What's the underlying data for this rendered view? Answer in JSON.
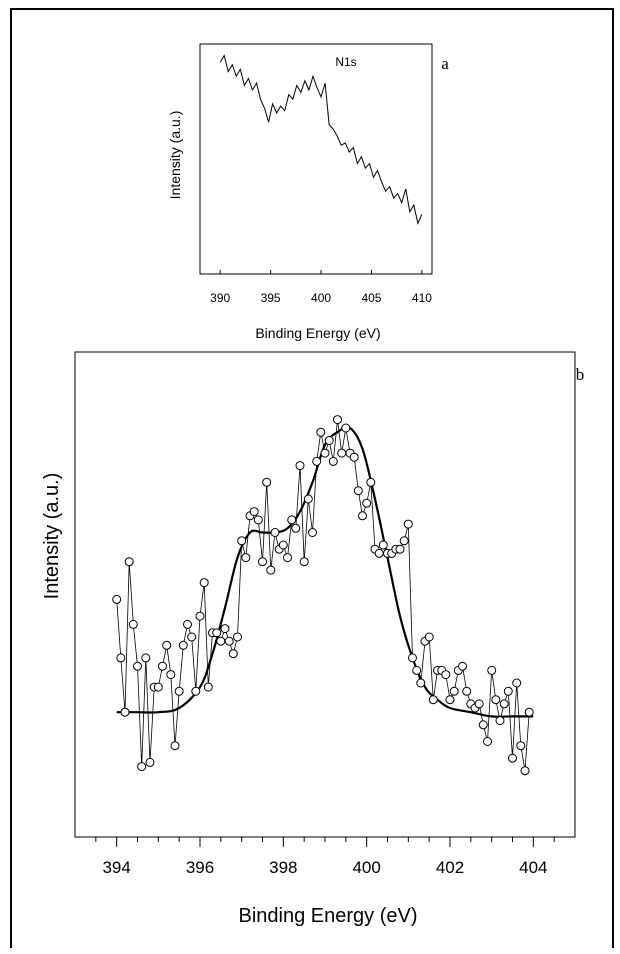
{
  "chart_data": [
    {
      "panel": "a",
      "type": "line",
      "annotation": "N1s",
      "xlabel": "Binding Energy (eV)",
      "ylabel": "Intensity (a.u.)",
      "xlim": [
        388,
        411
      ],
      "ylim": [
        0,
        100
      ],
      "x_ticks": [
        390,
        395,
        400,
        405,
        410
      ],
      "y_ticks": [],
      "grid": false,
      "series": [
        {
          "x": [
            390,
            390.4,
            390.8,
            391.2,
            391.6,
            392,
            392.4,
            392.8,
            393.2,
            393.6,
            394,
            394.4,
            394.8,
            395.2,
            395.6,
            396,
            396.4,
            396.8,
            397.2,
            397.6,
            398,
            398.4,
            398.8,
            399.2,
            399.6,
            400,
            400.4,
            400.8,
            401.2,
            401.6,
            402,
            402.4,
            402.8,
            403.2,
            403.6,
            404,
            404.4,
            404.8,
            405.2,
            405.6,
            406,
            406.4,
            406.8,
            407.2,
            407.6,
            408,
            408.4,
            408.8,
            409.2,
            409.6,
            410
          ],
          "y": [
            92,
            95,
            88,
            91,
            86,
            89,
            82,
            85,
            80,
            83,
            76,
            72,
            66,
            74,
            70,
            73,
            71,
            78,
            76,
            82,
            79,
            84,
            80,
            86,
            81,
            77,
            83,
            65,
            63,
            60,
            56,
            57,
            53,
            55,
            48,
            51,
            46,
            48,
            42,
            45,
            40,
            36,
            38,
            33,
            35,
            31,
            37,
            27,
            30,
            22,
            26
          ]
        }
      ]
    },
    {
      "panel": "b",
      "type": "scatter",
      "xlabel": "Binding Energy (eV)",
      "ylabel": "Intensity (a.u.)",
      "xlim": [
        393,
        405
      ],
      "ylim": [
        0,
        100
      ],
      "x_ticks": [
        394,
        396,
        398,
        400,
        402,
        404
      ],
      "y_ticks": [],
      "grid": false,
      "series": [
        {
          "name": "",
          "style": "open circles joined by thin line",
          "x": [
            394,
            394.1,
            394.2,
            394.3,
            394.4,
            394.5,
            394.6,
            394.7,
            394.8,
            394.9,
            395,
            395.1,
            395.2,
            395.3,
            395.4,
            395.5,
            395.6,
            395.7,
            395.8,
            395.9,
            396,
            396.1,
            396.2,
            396.3,
            396.4,
            396.5,
            396.6,
            396.7,
            396.8,
            396.9,
            397,
            397.1,
            397.2,
            397.3,
            397.4,
            397.5,
            397.6,
            397.7,
            397.8,
            397.9,
            398,
            398.1,
            398.2,
            398.3,
            398.4,
            398.5,
            398.6,
            398.7,
            398.8,
            398.9,
            399,
            399.1,
            399.2,
            399.3,
            399.4,
            399.5,
            399.6,
            399.7,
            399.8,
            399.9,
            400,
            400.1,
            400.2,
            400.3,
            400.4,
            400.5,
            400.6,
            400.7,
            400.8,
            400.9,
            401,
            401.1,
            401.2,
            401.3,
            401.4,
            401.5,
            401.6,
            401.7,
            401.8,
            401.9,
            402,
            402.1,
            402.2,
            402.3,
            402.4,
            402.5,
            402.6,
            402.7,
            402.8,
            402.9,
            403,
            403.1,
            403.2,
            403.3,
            403.4,
            403.5,
            403.6,
            403.7,
            403.8,
            403.9
          ],
          "y": [
            48,
            34,
            21,
            57,
            42,
            32,
            8,
            34,
            9,
            27,
            27,
            32,
            37,
            30,
            13,
            26,
            37,
            42,
            39,
            26,
            44,
            52,
            27,
            40,
            40,
            38,
            41,
            38,
            35,
            39,
            62,
            58,
            68,
            69,
            67,
            57,
            76,
            55,
            64,
            60,
            61,
            58,
            67,
            65,
            80,
            57,
            72,
            64,
            81,
            88,
            83,
            86,
            81,
            91,
            83,
            89,
            83,
            82,
            74,
            68,
            71,
            76,
            60,
            59,
            61,
            59,
            59,
            60,
            60,
            62,
            66,
            34,
            31,
            28,
            38,
            39,
            24,
            31,
            31,
            30,
            24,
            26,
            31,
            32,
            26,
            23,
            22,
            23,
            18,
            14,
            31,
            24,
            19,
            23,
            26,
            10,
            28,
            13,
            7,
            21
          ]
        },
        {
          "name": "",
          "style": "fitted curve",
          "x": [
            394,
            394.5,
            395,
            395.5,
            396,
            396.3,
            396.6,
            396.9,
            397.2,
            397.5,
            397.8,
            398.1,
            398.4,
            398.7,
            399,
            399.3,
            399.6,
            399.9,
            400.2,
            400.5,
            400.8,
            401.1,
            401.4,
            401.7,
            402,
            402.5,
            403,
            403.5,
            404
          ],
          "y": [
            21,
            21,
            21,
            22,
            27,
            35,
            46,
            58,
            64,
            64,
            64,
            65,
            69,
            76,
            85,
            88,
            89,
            84,
            72,
            58,
            44,
            34,
            27,
            24,
            22,
            21,
            20,
            20,
            20
          ]
        }
      ]
    }
  ]
}
